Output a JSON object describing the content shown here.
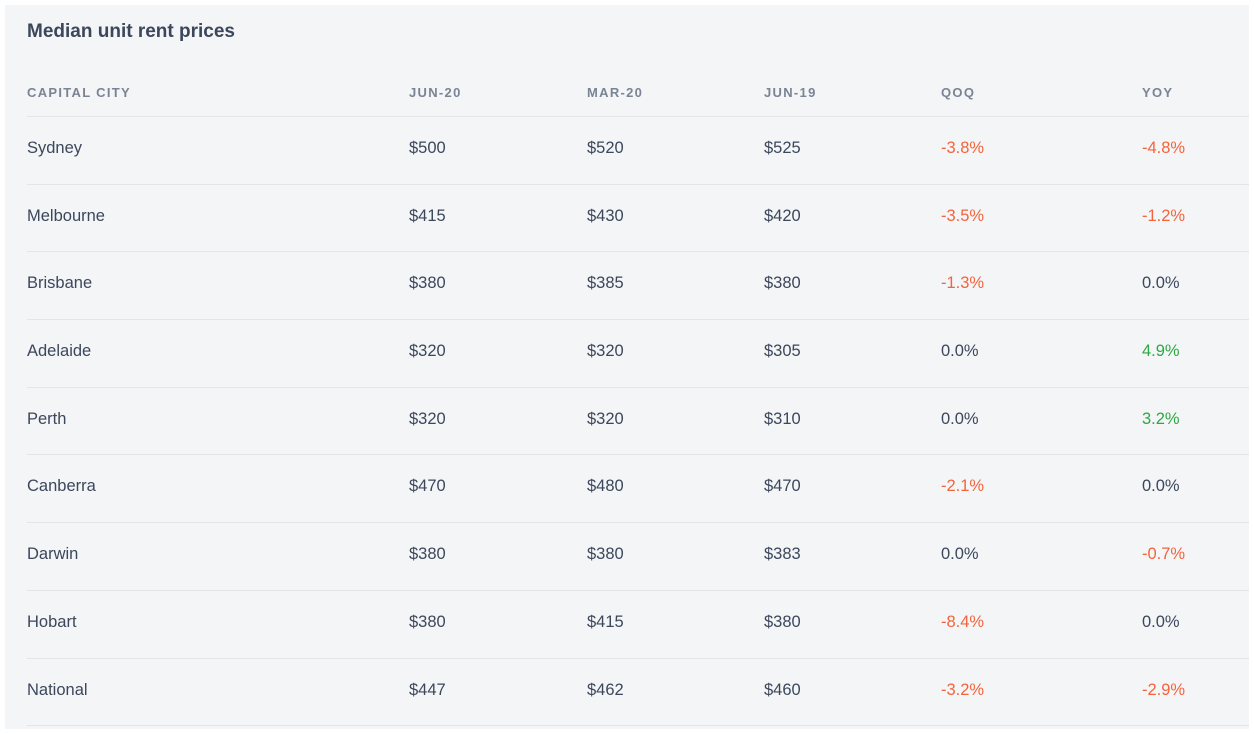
{
  "title": "Median unit rent prices",
  "colors": {
    "negative": "#f4643c",
    "positive": "#2fa843",
    "neutral": "#3c475b"
  },
  "table": {
    "columns": [
      "CAPITAL CITY",
      "JUN-20",
      "MAR-20",
      "JUN-19",
      "QOQ",
      "YOY"
    ],
    "rows": [
      [
        "Sydney",
        "$500",
        "$520",
        "$525",
        "-3.8%",
        "-4.8%"
      ],
      [
        "Melbourne",
        "$415",
        "$430",
        "$420",
        "-3.5%",
        "-1.2%"
      ],
      [
        "Brisbane",
        "$380",
        "$385",
        "$380",
        "-1.3%",
        "0.0%"
      ],
      [
        "Adelaide",
        "$320",
        "$320",
        "$305",
        "0.0%",
        "4.9%"
      ],
      [
        "Perth",
        "$320",
        "$320",
        "$310",
        "0.0%",
        "3.2%"
      ],
      [
        "Canberra",
        "$470",
        "$480",
        "$470",
        "-2.1%",
        "0.0%"
      ],
      [
        "Darwin",
        "$380",
        "$380",
        "$383",
        "0.0%",
        "-0.7%"
      ],
      [
        "Hobart",
        "$380",
        "$415",
        "$380",
        "-8.4%",
        "0.0%"
      ],
      [
        "National",
        "$447",
        "$462",
        "$460",
        "-3.2%",
        "-2.9%"
      ]
    ]
  }
}
